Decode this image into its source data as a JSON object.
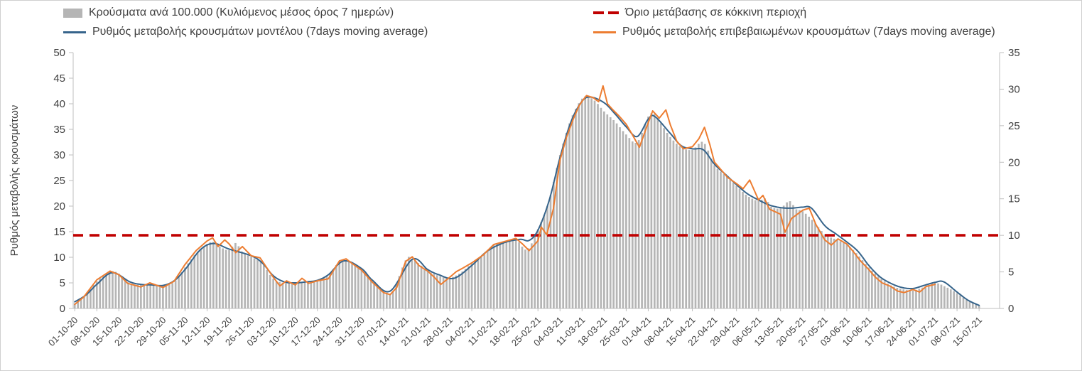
{
  "frame": {
    "background": "#ffffff",
    "border_color": "#cfcfcf"
  },
  "legend": {
    "items": [
      {
        "label": "Κρούσματα ανά 100.000 (Κυλιόμενος μέσος όρος 7 ημερών)",
        "marker": "bar",
        "color": "#b5b5b5"
      },
      {
        "label": "Όριο μετάβασης σε κόκκινη περιοχή",
        "marker": "dashed-line",
        "color": "#c00000"
      },
      {
        "label": "Ρυθμός μεταβολής κρουσμάτων μοντέλου (7days moving average)",
        "marker": "line",
        "color": "#36648b"
      },
      {
        "label": "Ρυθμός μεταβολής επιβεβαιωμένων κρουσμάτων (7days moving average)",
        "marker": "line",
        "color": "#ed7d31"
      }
    ]
  },
  "chart_data": {
    "type": "combo-bar-line",
    "x_tick_labels": [
      "01-10-20",
      "08-10-20",
      "15-10-20",
      "22-10-20",
      "29-10-20",
      "05-11-20",
      "12-11-20",
      "19-11-20",
      "26-11-20",
      "03-12-20",
      "10-12-20",
      "17-12-20",
      "24-12-20",
      "31-12-20",
      "07-01-21",
      "14-01-21",
      "21-01-21",
      "28-01-21",
      "04-02-21",
      "11-02-21",
      "18-02-21",
      "25-02-21",
      "04-03-21",
      "11-03-21",
      "18-03-21",
      "25-03-21",
      "01-04-21",
      "08-04-21",
      "15-04-21",
      "22-04-21",
      "29-04-21",
      "06-05-21",
      "13-05-21",
      "20-05-21",
      "27-05-21",
      "03-06-21",
      "10-06-21",
      "17-06-21",
      "24-06-21",
      "01-07-21",
      "08-07-21",
      "15-07-21"
    ],
    "x_unit": "week index into x_tick_labels (fractional allowed; bars are daily)",
    "left_axis": {
      "label": "Ρυθμός μεταβολής κρουσμάτων",
      "min": 0,
      "max": 50,
      "tick_step": 5
    },
    "right_axis": {
      "label": "",
      "min": 0,
      "max": 35,
      "tick_step": 5
    },
    "grid": "none",
    "threshold": {
      "label": "Όριο μετάβασης σε κόκκινη περιοχή",
      "value_left_axis": 14.3,
      "value_right_axis": 10,
      "color": "#c00000",
      "line_style": "dashed"
    },
    "series": [
      {
        "name": "Κρούσματα ανά 100.000 (Κυλιόμενος μέσος όρος 7 ημερών)",
        "type": "bar",
        "axis": "left",
        "color": "#b5b5b5",
        "points": [
          [
            0,
            1.0
          ],
          [
            0.5,
            2.5
          ],
          [
            1,
            5.3
          ],
          [
            1.6,
            7.2
          ],
          [
            2,
            6.8
          ],
          [
            2.5,
            4.9
          ],
          [
            3,
            4.6
          ],
          [
            3.5,
            4.8
          ],
          [
            4,
            4.4
          ],
          [
            4.5,
            5.2
          ],
          [
            5,
            8.0
          ],
          [
            5.5,
            10.8
          ],
          [
            6,
            12.6
          ],
          [
            6.3,
            13.0
          ],
          [
            6.6,
            12.0
          ],
          [
            7,
            11.4
          ],
          [
            7.3,
            12.8
          ],
          [
            7.6,
            11.0
          ],
          [
            8,
            10.1
          ],
          [
            8.5,
            8.8
          ],
          [
            9,
            5.8
          ],
          [
            9.5,
            5.0
          ],
          [
            10,
            5.0
          ],
          [
            10.5,
            5.3
          ],
          [
            11,
            5.5
          ],
          [
            11.5,
            6.5
          ],
          [
            12,
            9.2
          ],
          [
            12.3,
            9.4
          ],
          [
            12.6,
            8.6
          ],
          [
            13,
            7.6
          ],
          [
            13.5,
            5.2
          ],
          [
            14,
            3.6
          ],
          [
            14.4,
            3.2
          ],
          [
            15,
            9.4
          ],
          [
            15.3,
            9.7
          ],
          [
            16,
            7.4
          ],
          [
            16.5,
            6.4
          ],
          [
            17,
            6.0
          ],
          [
            17.5,
            7.0
          ],
          [
            18,
            8.8
          ],
          [
            18.5,
            10.5
          ],
          [
            19,
            12.4
          ],
          [
            19.5,
            13.0
          ],
          [
            20,
            13.5
          ],
          [
            20.5,
            11.5
          ],
          [
            21,
            15.5
          ],
          [
            21.5,
            21.0
          ],
          [
            22,
            30.0
          ],
          [
            22.5,
            37.0
          ],
          [
            23,
            41.0
          ],
          [
            23.3,
            41.3
          ],
          [
            23.6,
            40.5
          ],
          [
            24,
            38.5
          ],
          [
            24.5,
            36.5
          ],
          [
            25,
            34.0
          ],
          [
            25.5,
            32.5
          ],
          [
            26,
            37.5
          ],
          [
            26.3,
            38.0
          ],
          [
            26.6,
            36.0
          ],
          [
            27,
            33.5
          ],
          [
            27.5,
            31.5
          ],
          [
            28,
            31.0
          ],
          [
            28.5,
            32.5
          ],
          [
            29,
            28.0
          ],
          [
            29.5,
            26.0
          ],
          [
            30,
            24.0
          ],
          [
            30.5,
            22.0
          ],
          [
            31,
            21.0
          ],
          [
            31.3,
            21.5
          ],
          [
            31.6,
            19.8
          ],
          [
            32,
            19.6
          ],
          [
            32.4,
            21.0
          ],
          [
            32.7,
            19.4
          ],
          [
            33,
            19.0
          ],
          [
            33.5,
            17.0
          ],
          [
            34,
            14.5
          ],
          [
            34.5,
            13.5
          ],
          [
            35,
            12.5
          ],
          [
            35.5,
            10.5
          ],
          [
            36,
            8.0
          ],
          [
            36.5,
            6.0
          ],
          [
            37,
            4.5
          ],
          [
            37.5,
            3.8
          ],
          [
            38,
            3.5
          ],
          [
            38.5,
            4.2
          ],
          [
            39,
            5.0
          ],
          [
            39.5,
            4.2
          ],
          [
            40,
            3.0
          ],
          [
            40.5,
            1.5
          ],
          [
            41,
            0.5
          ]
        ]
      },
      {
        "name": "Ρυθμός μεταβολής κρουσμάτων μοντέλου (7days moving average)",
        "type": "line",
        "axis": "left",
        "color": "#36648b",
        "smooth": true,
        "points": [
          [
            0,
            1.3
          ],
          [
            0.5,
            2.6
          ],
          [
            1,
            4.7
          ],
          [
            1.7,
            7.0
          ],
          [
            2.5,
            5.2
          ],
          [
            3,
            4.7
          ],
          [
            3.5,
            4.6
          ],
          [
            4,
            4.5
          ],
          [
            4.5,
            5.4
          ],
          [
            5,
            7.6
          ],
          [
            5.7,
            11.5
          ],
          [
            6.3,
            12.7
          ],
          [
            7,
            11.6
          ],
          [
            8,
            10.3
          ],
          [
            8.5,
            8.9
          ],
          [
            9,
            6.4
          ],
          [
            9.5,
            5.2
          ],
          [
            10,
            5.0
          ],
          [
            10.5,
            5.2
          ],
          [
            11,
            5.5
          ],
          [
            11.5,
            6.6
          ],
          [
            12.2,
            9.3
          ],
          [
            13,
            7.8
          ],
          [
            13.5,
            5.5
          ],
          [
            14.3,
            3.4
          ],
          [
            15.3,
            9.6
          ],
          [
            16,
            7.6
          ],
          [
            16.5,
            6.6
          ],
          [
            17.2,
            5.9
          ],
          [
            18,
            8.4
          ],
          [
            18.7,
            11.2
          ],
          [
            19.5,
            12.9
          ],
          [
            20.2,
            13.5
          ],
          [
            20.6,
            13.3
          ],
          [
            21,
            15.3
          ],
          [
            21.5,
            21.0
          ],
          [
            22,
            29.5
          ],
          [
            22.5,
            36.5
          ],
          [
            23,
            40.5
          ],
          [
            23.4,
            41.3
          ],
          [
            24,
            40.2
          ],
          [
            24.5,
            38.0
          ],
          [
            25,
            35.5
          ],
          [
            25.5,
            33.6
          ],
          [
            26,
            37.0
          ],
          [
            26.3,
            37.5
          ],
          [
            27,
            34.2
          ],
          [
            27.5,
            31.8
          ],
          [
            28,
            31.2
          ],
          [
            28.5,
            31.0
          ],
          [
            29,
            28.2
          ],
          [
            29.5,
            26.2
          ],
          [
            30,
            24.2
          ],
          [
            30.5,
            22.4
          ],
          [
            31,
            21.2
          ],
          [
            31.5,
            20.2
          ],
          [
            32,
            19.7
          ],
          [
            32.5,
            19.6
          ],
          [
            33,
            19.8
          ],
          [
            33.4,
            19.6
          ],
          [
            34,
            16.2
          ],
          [
            34.5,
            14.6
          ],
          [
            35,
            13.0
          ],
          [
            35.5,
            11.2
          ],
          [
            36,
            8.4
          ],
          [
            36.5,
            6.2
          ],
          [
            37,
            4.9
          ],
          [
            37.5,
            4.1
          ],
          [
            38,
            3.9
          ],
          [
            38.5,
            4.5
          ],
          [
            39,
            5.1
          ],
          [
            39.4,
            5.2
          ],
          [
            40,
            3.2
          ],
          [
            40.5,
            1.6
          ],
          [
            41,
            0.6
          ]
        ]
      },
      {
        "name": "Ρυθμός μεταβολής επιβεβαιωμένων κρουσμάτων (7days moving average)",
        "type": "line",
        "axis": "left",
        "color": "#ed7d31",
        "smooth": false,
        "points": [
          [
            0,
            0.8
          ],
          [
            0.4,
            2.2
          ],
          [
            1,
            5.6
          ],
          [
            1.6,
            7.3
          ],
          [
            2,
            6.6
          ],
          [
            2.4,
            4.9
          ],
          [
            3,
            4.2
          ],
          [
            3.4,
            5.0
          ],
          [
            4,
            4.1
          ],
          [
            4.5,
            5.3
          ],
          [
            5,
            8.6
          ],
          [
            5.5,
            11.3
          ],
          [
            6,
            13.2
          ],
          [
            6.25,
            13.8
          ],
          [
            6.5,
            12.1
          ],
          [
            6.8,
            13.4
          ],
          [
            7,
            12.6
          ],
          [
            7.3,
            10.9
          ],
          [
            7.6,
            12.1
          ],
          [
            8,
            10.3
          ],
          [
            8.4,
            9.9
          ],
          [
            8.7,
            8.0
          ],
          [
            9,
            6.1
          ],
          [
            9.3,
            4.4
          ],
          [
            9.6,
            5.4
          ],
          [
            10,
            4.6
          ],
          [
            10.3,
            5.9
          ],
          [
            10.6,
            4.9
          ],
          [
            11,
            5.4
          ],
          [
            11.5,
            5.8
          ],
          [
            12,
            9.3
          ],
          [
            12.3,
            9.7
          ],
          [
            12.6,
            8.7
          ],
          [
            13,
            7.5
          ],
          [
            13.5,
            5.1
          ],
          [
            14,
            3.1
          ],
          [
            14.3,
            2.7
          ],
          [
            14.6,
            4.1
          ],
          [
            15,
            9.2
          ],
          [
            15.3,
            10.1
          ],
          [
            15.6,
            8.4
          ],
          [
            16,
            7.3
          ],
          [
            16.3,
            6.1
          ],
          [
            16.6,
            4.7
          ],
          [
            17,
            6.1
          ],
          [
            17.3,
            7.2
          ],
          [
            17.6,
            7.9
          ],
          [
            18,
            8.9
          ],
          [
            18.5,
            10.4
          ],
          [
            19,
            12.5
          ],
          [
            19.5,
            13.1
          ],
          [
            20,
            13.7
          ],
          [
            20.3,
            12.6
          ],
          [
            20.6,
            11.3
          ],
          [
            21,
            13.2
          ],
          [
            21.15,
            15.9
          ],
          [
            21.4,
            14.4
          ],
          [
            21.7,
            19.5
          ],
          [
            22,
            29.0
          ],
          [
            22.3,
            33.5
          ],
          [
            22.6,
            37.0
          ],
          [
            22.85,
            39.5
          ],
          [
            23,
            40.5
          ],
          [
            23.2,
            41.6
          ],
          [
            23.5,
            41.2
          ],
          [
            23.75,
            40.4
          ],
          [
            23.95,
            43.5
          ],
          [
            24.15,
            40.0
          ],
          [
            24.4,
            38.8
          ],
          [
            24.7,
            37.5
          ],
          [
            25,
            36.0
          ],
          [
            25.3,
            33.8
          ],
          [
            25.6,
            31.5
          ],
          [
            26,
            36.3
          ],
          [
            26.2,
            38.6
          ],
          [
            26.5,
            37.2
          ],
          [
            26.8,
            38.8
          ],
          [
            27,
            35.9
          ],
          [
            27.3,
            32.6
          ],
          [
            27.6,
            31.2
          ],
          [
            28,
            31.6
          ],
          [
            28.3,
            33.2
          ],
          [
            28.55,
            35.4
          ],
          [
            28.8,
            31.9
          ],
          [
            29,
            28.6
          ],
          [
            29.3,
            27.1
          ],
          [
            29.6,
            25.6
          ],
          [
            30,
            24.4
          ],
          [
            30.3,
            23.4
          ],
          [
            30.6,
            25.1
          ],
          [
            31,
            21.2
          ],
          [
            31.2,
            22.1
          ],
          [
            31.5,
            19.4
          ],
          [
            32,
            18.4
          ],
          [
            32.2,
            14.9
          ],
          [
            32.5,
            17.6
          ],
          [
            33,
            19.2
          ],
          [
            33.3,
            19.6
          ],
          [
            33.6,
            16.4
          ],
          [
            34,
            13.4
          ],
          [
            34.3,
            12.4
          ],
          [
            34.6,
            13.6
          ],
          [
            35,
            12.6
          ],
          [
            35.3,
            11.1
          ],
          [
            35.6,
            9.4
          ],
          [
            36,
            7.6
          ],
          [
            36.3,
            6.1
          ],
          [
            36.6,
            5.0
          ],
          [
            37,
            4.3
          ],
          [
            37.3,
            3.4
          ],
          [
            37.6,
            3.1
          ],
          [
            38,
            3.7
          ],
          [
            38.3,
            3.2
          ],
          [
            38.6,
            4.3
          ],
          [
            39,
            4.7
          ]
        ]
      }
    ]
  }
}
